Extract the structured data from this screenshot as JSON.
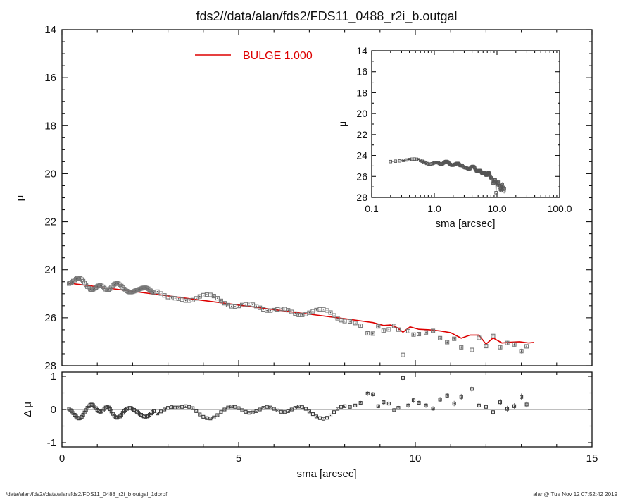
{
  "header": {
    "title": "fds2//data/alan/fds2/FDS11_0488_r2i_b.outgal"
  },
  "legend": {
    "label": "BULGE  1.000",
    "color": "#dd0000"
  },
  "footer": {
    "left": "/data/alan/fds2//data/alan/fds2/FDS11_0488_r2i_b.outgal_1dprof",
    "right": "alan@  Tue Nov 12 07:52:42 2019"
  },
  "colors": {
    "model_red": "#dd0000",
    "marker_gray": "#787878",
    "marker_dark": "#3c3c3c",
    "frame": "#111111",
    "zero_line": "#aaaaaa",
    "error_bar": "#808080"
  },
  "chart_data": [
    {
      "id": "main-profile",
      "type": "scatter",
      "xlabel": "sma [arcsec]",
      "ylabel": "μ",
      "xlim": [
        0,
        15
      ],
      "ylim": [
        28,
        14
      ],
      "y_inverted": true,
      "xticks": [
        0,
        5,
        10,
        15
      ],
      "xtick_labels": [
        "0",
        "5",
        "10",
        "15"
      ],
      "yticks": [
        14,
        16,
        18,
        20,
        22,
        24,
        26,
        28
      ],
      "ytick_labels": [
        "14",
        "16",
        "18",
        "20",
        "22",
        "24",
        "26",
        "28"
      ],
      "legend_position": "top-left-inside",
      "series": [
        {
          "name": "BULGE model",
          "type": "line",
          "color": "#dd0000",
          "points": [
            [
              0.2,
              24.56
            ],
            [
              1.0,
              24.71
            ],
            [
              2.0,
              24.9
            ],
            [
              3.0,
              25.09
            ],
            [
              4.0,
              25.28
            ],
            [
              5.0,
              25.47
            ],
            [
              6.0,
              25.66
            ],
            [
              7.0,
              25.85
            ],
            [
              8.0,
              26.04
            ],
            [
              8.5,
              26.14
            ],
            [
              8.8,
              26.2
            ],
            [
              9.1,
              26.32
            ],
            [
              9.3,
              26.3
            ],
            [
              9.5,
              26.42
            ],
            [
              9.65,
              26.6
            ],
            [
              9.85,
              26.38
            ],
            [
              10.1,
              26.48
            ],
            [
              10.4,
              26.5
            ],
            [
              10.7,
              26.55
            ],
            [
              11.0,
              26.62
            ],
            [
              11.3,
              26.85
            ],
            [
              11.55,
              26.72
            ],
            [
              11.8,
              26.72
            ],
            [
              12.0,
              27.1
            ],
            [
              12.2,
              26.84
            ],
            [
              12.45,
              27.05
            ],
            [
              12.7,
              27.02
            ],
            [
              12.95,
              27.0
            ],
            [
              13.2,
              27.05
            ],
            [
              13.35,
              27.03
            ]
          ]
        },
        {
          "name": "galaxy profile",
          "type": "scatter",
          "marker": "open-square",
          "color": "#787878",
          "derivation": "mu(sma) = BULGE model interpolated at sma + residual dmu(sma) from residual panel arrays"
        }
      ]
    },
    {
      "id": "inset-profile",
      "type": "scatter",
      "xscale": "log",
      "xlabel": "sma [arcsec]",
      "ylabel": "μ",
      "xlim": [
        0.1,
        100
      ],
      "ylim": [
        28,
        14
      ],
      "y_inverted": true,
      "xticks": [
        0.1,
        1.0,
        10.0,
        100.0
      ],
      "xtick_labels": [
        "0.1",
        "1.0",
        "10.0",
        "100.0"
      ],
      "yticks": [
        14,
        16,
        18,
        20,
        22,
        24,
        26,
        28
      ],
      "ytick_labels": [
        "14",
        "16",
        "18",
        "20",
        "22",
        "24",
        "26",
        "28"
      ],
      "series_note": "same galaxy profile data as main panel, squares joined by dark line"
    },
    {
      "id": "residual",
      "type": "scatter",
      "xlabel": "sma [arcsec]",
      "ylabel": "Δ μ",
      "xlim": [
        0,
        15
      ],
      "ylim": [
        -1,
        1
      ],
      "xticks": [
        0,
        5,
        10,
        15
      ],
      "xtick_labels": [
        "0",
        "5",
        "10",
        "15"
      ],
      "yticks": [
        1,
        0,
        -1
      ],
      "ytick_labels": [
        "1",
        "0",
        "-1"
      ],
      "zero_line": true,
      "residuals": {
        "dense": {
          "sma_start": 0.2,
          "sma_step": 0.04,
          "dmu": [
            0.02,
            -0.02,
            -0.06,
            -0.11,
            -0.16,
            -0.21,
            -0.25,
            -0.27,
            -0.26,
            -0.22,
            -0.16,
            -0.09,
            -0.02,
            0.05,
            0.1,
            0.14,
            0.15,
            0.13,
            0.09,
            0.04,
            -0.01,
            -0.05,
            -0.07,
            -0.06,
            -0.03,
            0.02,
            0.06,
            0.08,
            0.06,
            0.01,
            -0.06,
            -0.13,
            -0.19,
            -0.23,
            -0.25,
            -0.24,
            -0.21,
            -0.16,
            -0.1,
            -0.05,
            -0.01,
            0.02,
            0.04,
            0.05,
            0.04,
            0.02,
            -0.01,
            -0.04,
            -0.07,
            -0.1,
            -0.13,
            -0.16,
            -0.19,
            -0.21,
            -0.22,
            -0.21,
            -0.19,
            -0.16,
            -0.12,
            -0.08,
            -0.05
          ]
        },
        "mid": {
          "sma_start": 2.7,
          "sma_step": 0.1,
          "dmu": [
            -0.12,
            -0.06,
            0.0,
            0.05,
            0.07,
            0.06,
            0.06,
            0.08,
            0.1,
            0.08,
            0.04,
            -0.05,
            -0.15,
            -0.22,
            -0.26,
            -0.27,
            -0.24,
            -0.17,
            -0.08,
            0.0,
            0.06,
            0.09,
            0.08,
            0.04,
            -0.02,
            -0.07,
            -0.1,
            -0.09,
            -0.05,
            0.0,
            0.05,
            0.08,
            0.06,
            0.02,
            -0.03,
            -0.07,
            -0.08,
            -0.05,
            0.0,
            0.05,
            0.09,
            0.07,
            0.02,
            -0.06,
            -0.14,
            -0.21,
            -0.26,
            -0.28,
            -0.25,
            -0.18,
            -0.08,
            0.02,
            0.08,
            0.1
          ]
        },
        "sparse": {
          "points": [
            [
              8.15,
              0.08,
              0.05
            ],
            [
              8.3,
              0.12,
              0.05
            ],
            [
              8.45,
              0.2,
              0.06
            ],
            [
              8.65,
              0.48,
              0.07
            ],
            [
              8.8,
              0.46,
              0.07
            ],
            [
              8.95,
              0.1,
              0.06
            ],
            [
              9.1,
              0.22,
              0.07
            ],
            [
              9.25,
              0.18,
              0.07
            ],
            [
              9.4,
              -0.02,
              0.06
            ],
            [
              9.52,
              0.05,
              0.06
            ],
            [
              9.65,
              0.95,
              0.09
            ],
            [
              9.8,
              0.12,
              0.07
            ],
            [
              9.95,
              0.28,
              0.08
            ],
            [
              10.1,
              0.2,
              0.07
            ],
            [
              10.3,
              0.12,
              0.07
            ],
            [
              10.5,
              0.03,
              0.07
            ],
            [
              10.7,
              0.3,
              0.08
            ],
            [
              10.9,
              0.42,
              0.08
            ],
            [
              11.1,
              0.18,
              0.08
            ],
            [
              11.3,
              0.38,
              0.09
            ],
            [
              11.6,
              0.62,
              0.09
            ],
            [
              11.8,
              0.12,
              0.08
            ],
            [
              12.0,
              0.08,
              0.08
            ],
            [
              12.2,
              -0.08,
              0.08
            ],
            [
              12.4,
              0.22,
              0.09
            ],
            [
              12.6,
              0.02,
              0.09
            ],
            [
              12.8,
              0.1,
              0.09
            ],
            [
              13.0,
              0.38,
              0.1
            ],
            [
              13.15,
              0.15,
              0.09
            ]
          ]
        }
      }
    }
  ]
}
